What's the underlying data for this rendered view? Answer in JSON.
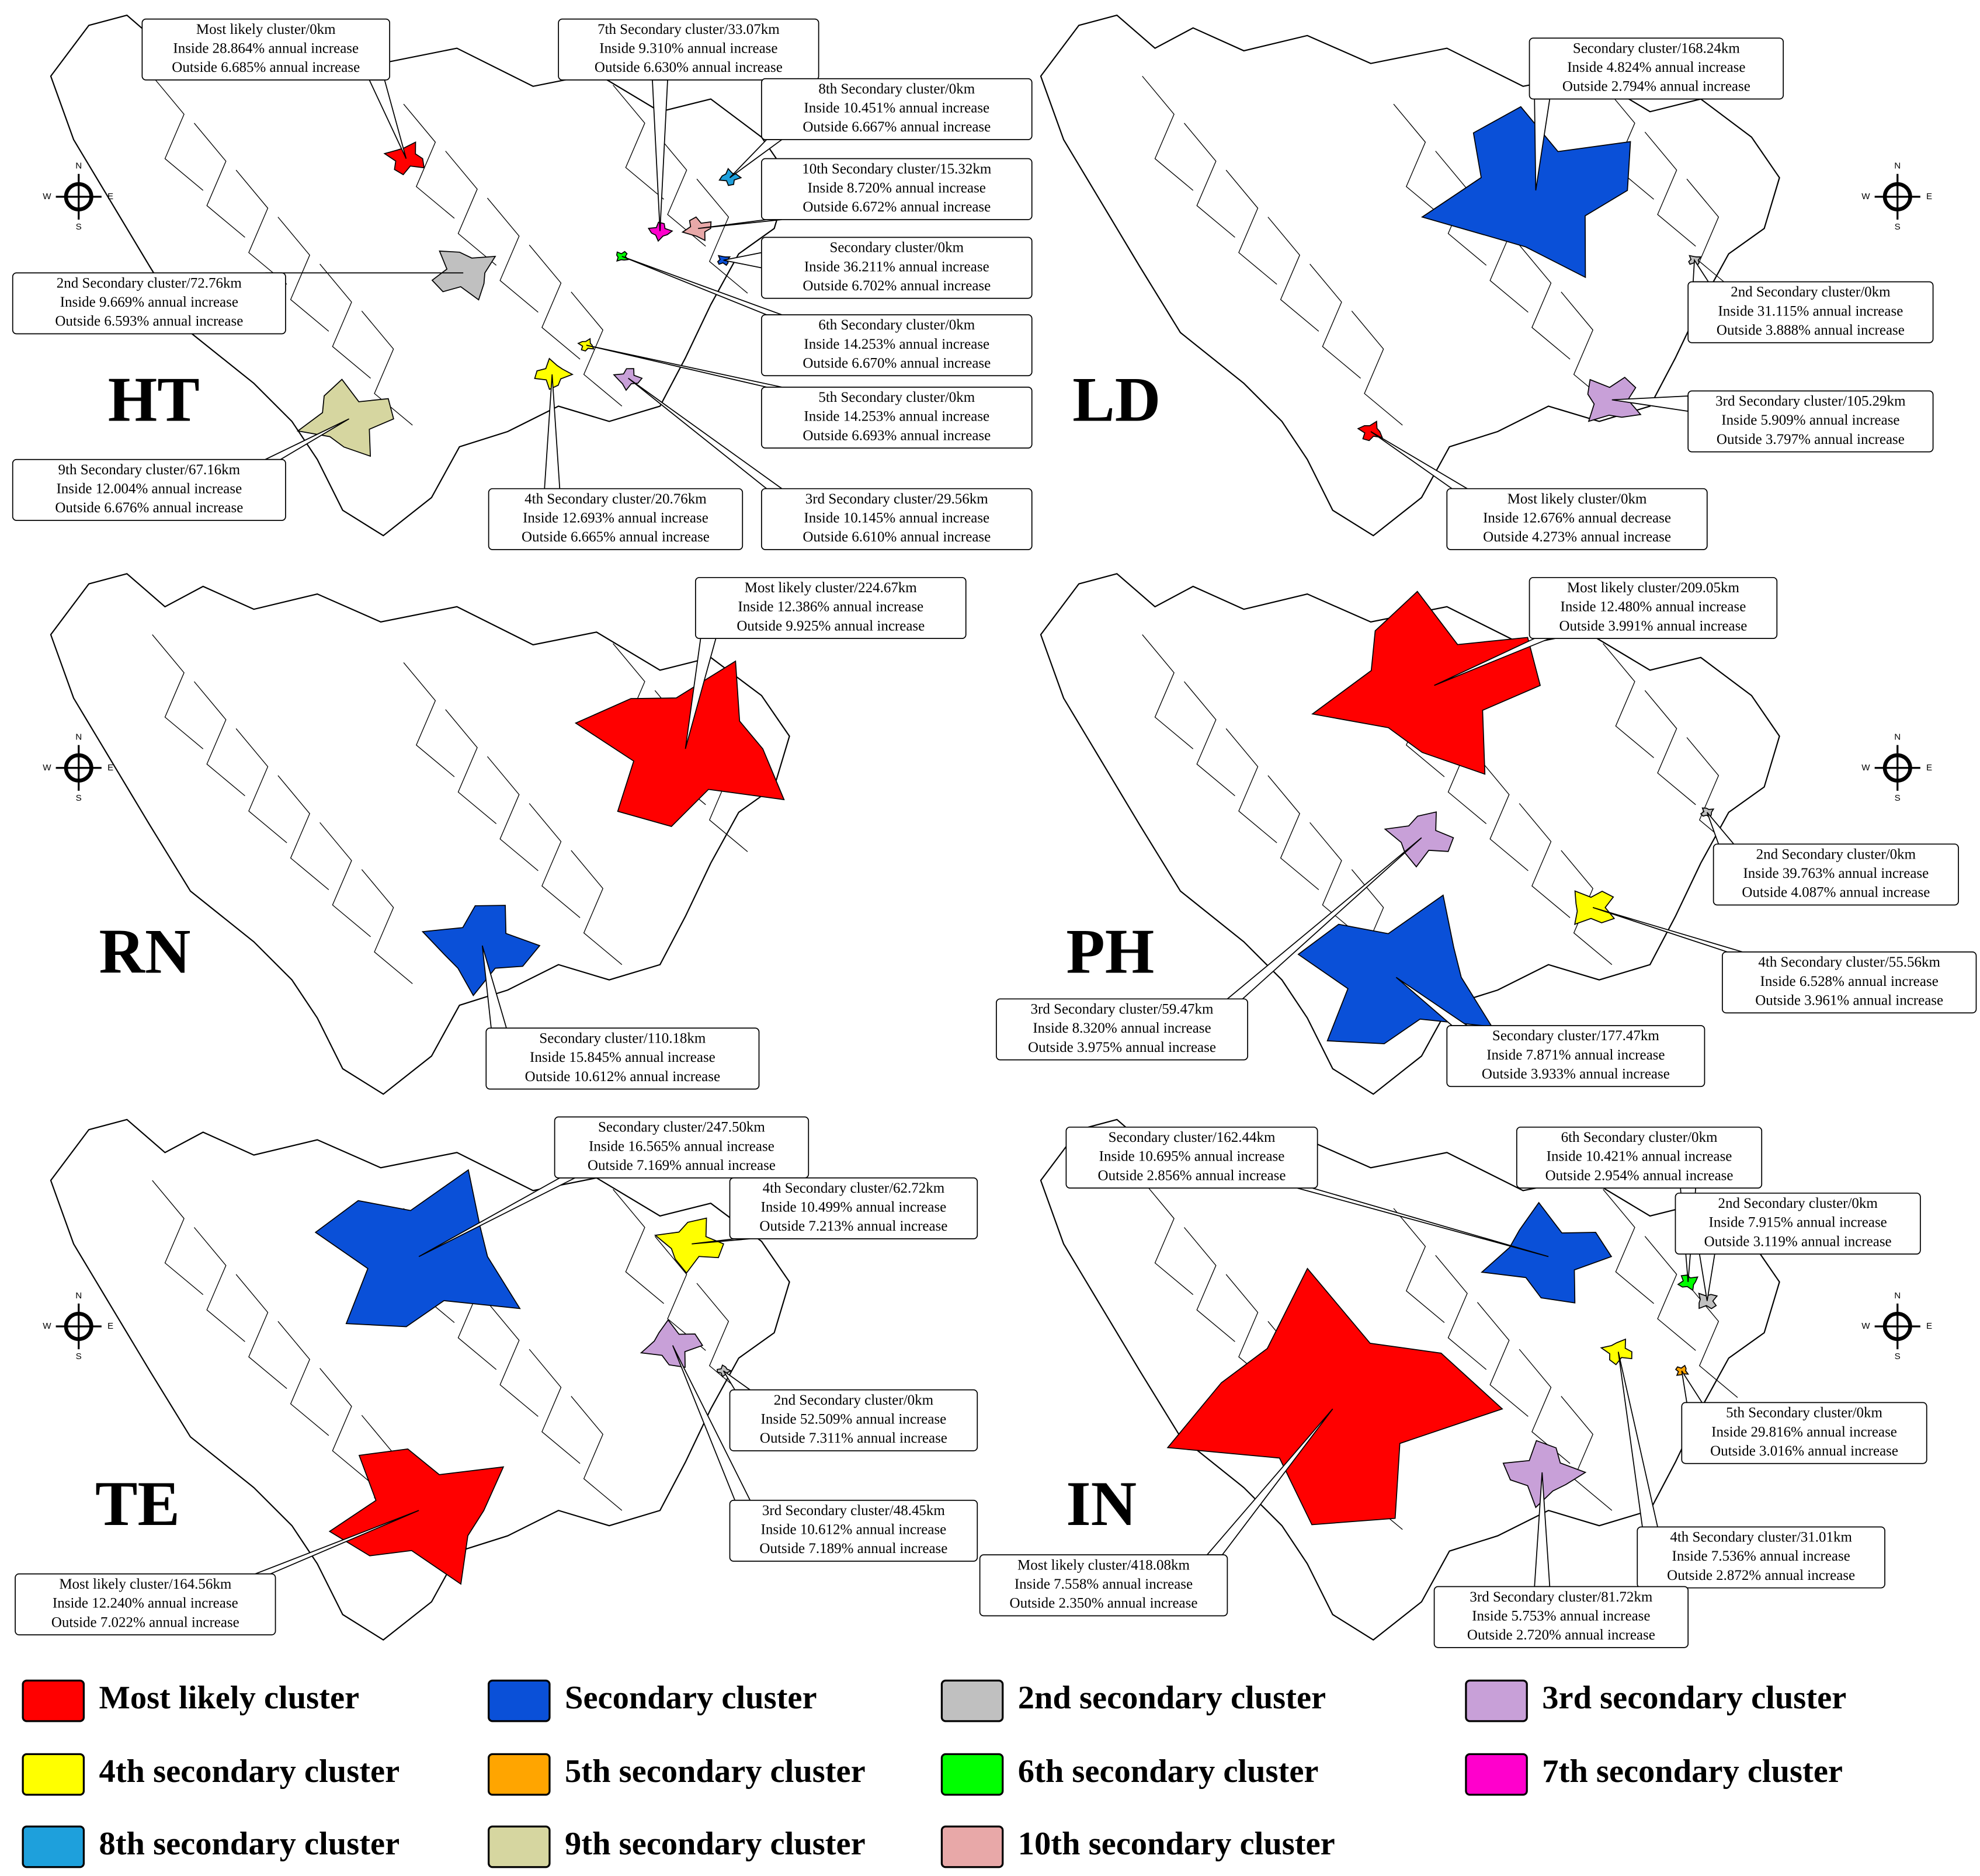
{
  "compass": [
    "N",
    "E",
    "S",
    "W"
  ],
  "panels": [
    {
      "label": "HT",
      "clusters": [
        [
          "Most likely cluster/0km",
          "Inside 28.864% annual increase",
          "Outside 6.685% annual increase"
        ],
        [
          "7th Secondary cluster/33.07km",
          "Inside 9.310% annual increase",
          "Outside 6.630% annual increase"
        ],
        [
          "8th Secondary cluster/0km",
          "Inside 10.451% annual increase",
          "Outside 6.667% annual increase"
        ],
        [
          "10th Secondary cluster/15.32km",
          "Inside 8.720% annual increase",
          "Outside 6.672% annual increase"
        ],
        [
          "Secondary cluster/0km",
          "Inside 36.211% annual increase",
          "Outside 6.702% annual increase"
        ],
        [
          "6th Secondary cluster/0km",
          "Inside 14.253% annual increase",
          "Outside 6.670% annual increase"
        ],
        [
          "5th Secondary cluster/0km",
          "Inside 14.253% annual increase",
          "Outside 6.693% annual increase"
        ],
        [
          "3rd Secondary cluster/29.56km",
          "Inside 10.145% annual increase",
          "Outside 6.610% annual increase"
        ],
        [
          "4th Secondary cluster/20.76km",
          "Inside 12.693% annual increase",
          "Outside 6.665% annual increase"
        ],
        [
          "9th Secondary cluster/67.16km",
          "Inside 12.004% annual increase",
          "Outside 6.676% annual increase"
        ],
        [
          "2nd Secondary cluster/72.76km",
          "Inside 9.669% annual increase",
          "Outside 6.593% annual increase"
        ]
      ]
    },
    {
      "label": "LD",
      "clusters": [
        [
          "Secondary cluster/168.24km",
          "Inside 4.824% annual increase",
          "Outside 2.794% annual increase"
        ],
        [
          "2nd Secondary cluster/0km",
          "Inside 31.115% annual increase",
          "Outside 3.888% annual increase"
        ],
        [
          "3rd Secondary cluster/105.29km",
          "Inside 5.909% annual increase",
          "Outside 3.797% annual increase"
        ],
        [
          "Most likely cluster/0km",
          "Inside 12.676% annual decrease",
          "Outside 4.273% annual increase"
        ]
      ]
    },
    {
      "label": "RN",
      "clusters": [
        [
          "Most likely cluster/224.67km",
          "Inside 12.386% annual increase",
          "Outside 9.925% annual increase"
        ],
        [
          "Secondary cluster/110.18km",
          "Inside 15.845% annual increase",
          "Outside 10.612% annual increase"
        ]
      ]
    },
    {
      "label": "PH",
      "clusters": [
        [
          "Most likely cluster/209.05km",
          "Inside 12.480% annual increase",
          "Outside 3.991% annual increase"
        ],
        [
          "2nd Secondary cluster/0km",
          "Inside 39.763% annual increase",
          "Outside 4.087% annual increase"
        ],
        [
          "4th Secondary cluster/55.56km",
          "Inside 6.528% annual increase",
          "Outside 3.961% annual increase"
        ],
        [
          "Secondary cluster/177.47km",
          "Inside 7.871% annual increase",
          "Outside 3.933% annual increase"
        ],
        [
          "3rd Secondary cluster/59.47km",
          "Inside 8.320% annual increase",
          "Outside 3.975% annual increase"
        ]
      ]
    },
    {
      "label": "TE",
      "clusters": [
        [
          "Secondary cluster/247.50km",
          "Inside 16.565% annual increase",
          "Outside 7.169% annual increase"
        ],
        [
          "4th Secondary cluster/62.72km",
          "Inside 10.499% annual increase",
          "Outside 7.213% annual increase"
        ],
        [
          "2nd Secondary cluster/0km",
          "Inside 52.509% annual increase",
          "Outside 7.311% annual increase"
        ],
        [
          "3rd Secondary cluster/48.45km",
          "Inside 10.612% annual increase",
          "Outside 7.189% annual increase"
        ],
        [
          "Most likely cluster/164.56km",
          "Inside 12.240% annual increase",
          "Outside 7.022% annual increase"
        ]
      ]
    },
    {
      "label": "IN",
      "clusters": [
        [
          "Secondary cluster/162.44km",
          "Inside 10.695% annual increase",
          "Outside 2.856% annual increase"
        ],
        [
          "6th Secondary cluster/0km",
          "Inside 10.421% annual increase",
          "Outside 2.954% annual increase"
        ],
        [
          "2nd Secondary cluster/0km",
          "Inside 7.915% annual increase",
          "Outside 3.119% annual increase"
        ],
        [
          "5th Secondary cluster/0km",
          "Inside 29.816% annual increase",
          "Outside 3.016% annual increase"
        ],
        [
          "4th Secondary cluster/31.01km",
          "Inside 7.536% annual increase",
          "Outside 2.872% annual increase"
        ],
        [
          "3rd Secondary cluster/81.72km",
          "Inside 5.753% annual increase",
          "Outside 2.720% annual increase"
        ],
        [
          "Most likely cluster/418.08km",
          "Inside 7.558% annual increase",
          "Outside 2.350% annual increase"
        ]
      ]
    }
  ],
  "legend": [
    {
      "label": "Most likely cluster",
      "color": "#ff0000"
    },
    {
      "label": "Secondary cluster",
      "color": "#0a50d8"
    },
    {
      "label": "2nd secondary cluster",
      "color": "#c0c0c0"
    },
    {
      "label": "3rd secondary cluster",
      "color": "#c8a0d8"
    },
    {
      "label": "4th secondary cluster",
      "color": "#ffff00"
    },
    {
      "label": "5th secondary cluster",
      "color": "#ffa500"
    },
    {
      "label": "6th secondary cluster",
      "color": "#00ff00"
    },
    {
      "label": "7th secondary cluster",
      "color": "#ff00cc"
    },
    {
      "label": "8th secondary cluster",
      "color": "#1ea0dc"
    },
    {
      "label": "9th secondary cluster",
      "color": "#d6d6a0"
    },
    {
      "label": "10th secondary cluster",
      "color": "#e8a8a8"
    }
  ]
}
